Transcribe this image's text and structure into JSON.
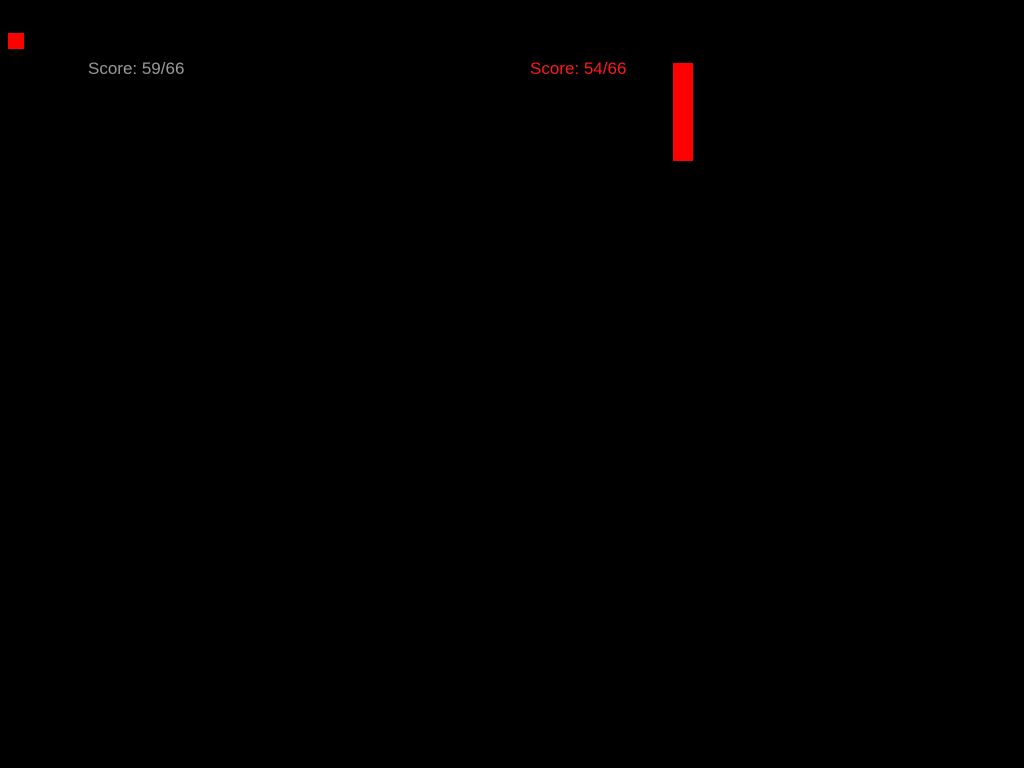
{
  "game": {
    "player_score": "Score: 59/66",
    "opponent_score": "Score: 54/66"
  },
  "colors": {
    "background": "#000000",
    "player_score_text": "#9a9a9a",
    "opponent_score_text": "#ff1a1a",
    "ball": "#ff0000",
    "paddle": "#ff0000"
  }
}
